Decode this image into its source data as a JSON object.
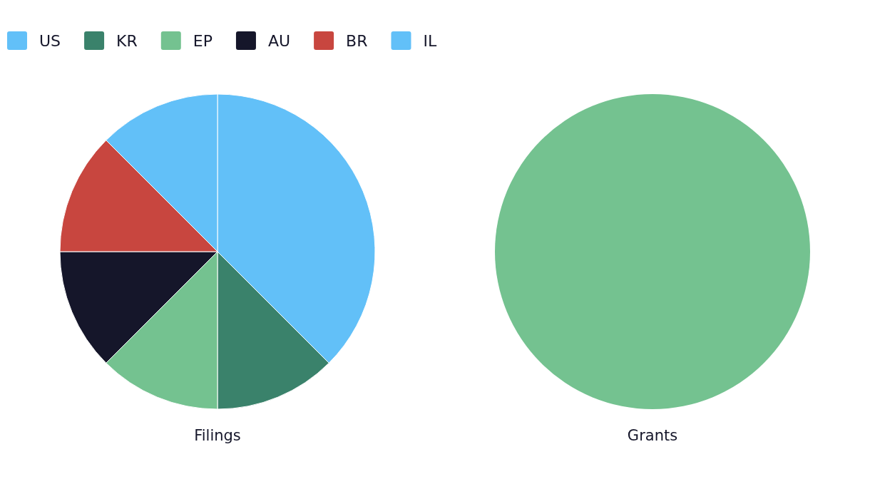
{
  "chart_data": [
    {
      "type": "pie",
      "title": "Filings",
      "categories": [
        "US",
        "KR",
        "EP",
        "AU",
        "BR",
        "IL"
      ],
      "values": [
        37.5,
        12.5,
        12.5,
        12.5,
        12.5,
        12.5
      ],
      "colors": [
        "#62c0f8",
        "#3a826b",
        "#74c290",
        "#15162a",
        "#c8463f",
        "#62c0f8"
      ],
      "legend": "top left"
    },
    {
      "type": "pie",
      "title": "Grants",
      "categories": [
        null
      ],
      "values": [
        100
      ],
      "colors": [
        "#74c290"
      ]
    }
  ]
}
